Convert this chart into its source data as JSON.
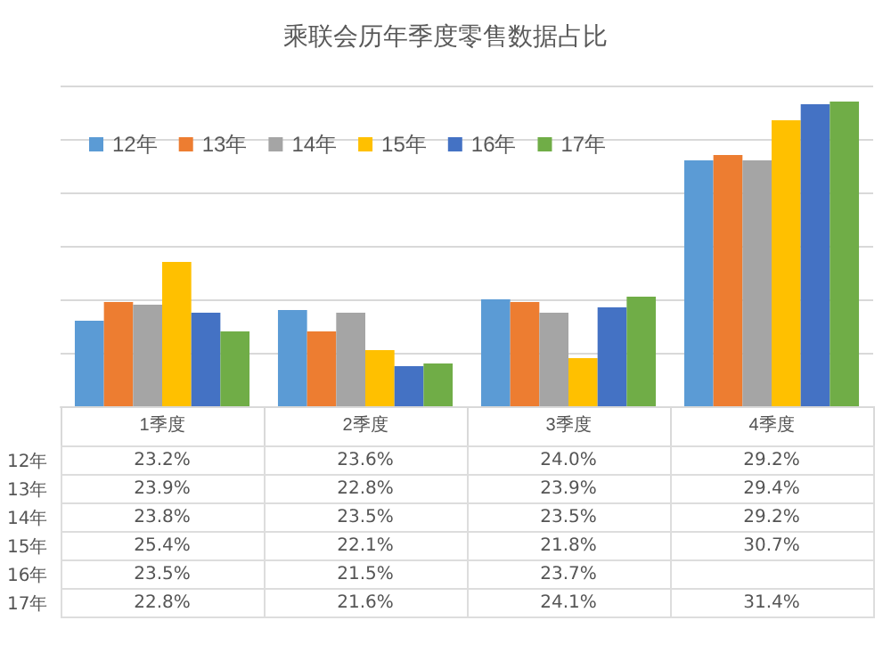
{
  "chart_data": {
    "type": "bar",
    "title": "乘联会历年季度零售数据占比",
    "categories": [
      "1季度",
      "2季度",
      "3季度",
      "4季度"
    ],
    "ylim": [
      20,
      32
    ],
    "yticks": [
      {
        "value": 20,
        "label": null
      },
      {
        "value": 22,
        "label": null
      },
      {
        "value": 24,
        "label": null
      },
      {
        "value": 26,
        "label": null
      },
      {
        "value": 28,
        "label": null
      },
      {
        "value": 30,
        "label": null
      },
      {
        "value": 32,
        "label": null
      }
    ],
    "tick_labels": "x",
    "grid": "y",
    "legend": "top left",
    "series": [
      {
        "name": "12年",
        "color": "#5b9bd5",
        "values": [
          23.2,
          23.6,
          24.0,
          29.2
        ],
        "value_labels": [
          "23.2%",
          "23.6%",
          "24.0%",
          "29.2%"
        ]
      },
      {
        "name": "13年",
        "color": "#ed7d31",
        "values": [
          23.9,
          22.8,
          23.9,
          29.4
        ],
        "value_labels": [
          "23.9%",
          "22.8%",
          "23.9%",
          "29.4%"
        ]
      },
      {
        "name": "14年",
        "color": "#a5a5a5",
        "values": [
          23.8,
          23.5,
          23.5,
          29.2
        ],
        "value_labels": [
          "23.8%",
          "23.5%",
          "23.5%",
          "29.2%"
        ]
      },
      {
        "name": "15年",
        "color": "#ffc000",
        "values": [
          25.4,
          22.1,
          21.8,
          30.7
        ],
        "value_labels": [
          "25.4%",
          "22.1%",
          "21.8%",
          "30.7%"
        ]
      },
      {
        "name": "16年",
        "color": "#4472c4",
        "values": [
          23.5,
          21.5,
          23.7,
          31.3
        ],
        "value_labels": [
          "23.5%",
          "21.5%",
          "23.7%",
          null
        ]
      },
      {
        "name": "17年",
        "color": "#70ad47",
        "values": [
          22.8,
          21.6,
          24.1,
          31.4
        ],
        "value_labels": [
          "22.8%",
          "21.6%",
          "24.1%",
          "31.4%"
        ]
      }
    ]
  }
}
